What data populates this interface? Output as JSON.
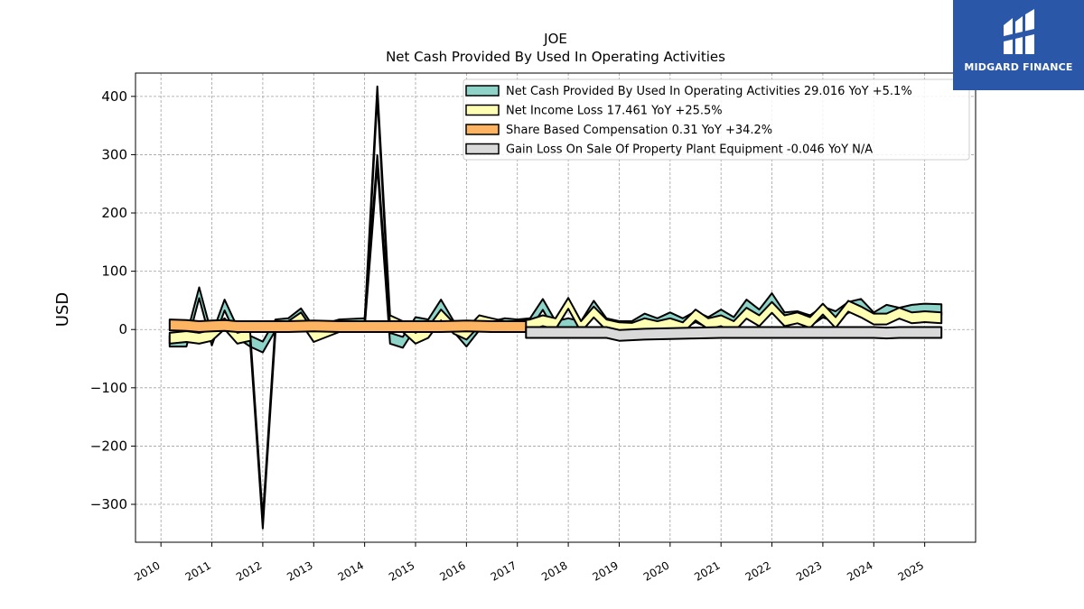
{
  "chart_data": {
    "type": "area",
    "title": "JOE",
    "subtitle": "Net Cash Provided By Used In Operating Activities",
    "ylabel": "USD",
    "xlabel": "",
    "ylim": [
      -365,
      440
    ],
    "xlim": [
      2009.5,
      2026.0
    ],
    "y_ticks": [
      400,
      300,
      200,
      100,
      0,
      -100,
      -200,
      -300
    ],
    "y_tick_labels": [
      "400",
      "300",
      "200",
      "100",
      "0",
      "−100",
      "−200",
      "−300"
    ],
    "x_ticks": [
      2010,
      2011,
      2012,
      2013,
      2014,
      2015,
      2016,
      2017,
      2018,
      2019,
      2020,
      2021,
      2022,
      2023,
      2024,
      2025
    ],
    "x_tick_labels": [
      "2010",
      "2011",
      "2012",
      "2013",
      "2014",
      "2015",
      "2016",
      "2017",
      "2018",
      "2019",
      "2020",
      "2021",
      "2022",
      "2023",
      "2024",
      "2025"
    ],
    "grid": true,
    "legend_position": "top-right",
    "series": [
      {
        "name": "Net Cash Provided By Used In Operating Activities",
        "legend_label": "Net Cash Provided By Used In Operating Activities  29.016 YoY +5.1%",
        "color": "#8dd3c7",
        "points": [
          [
            2010.17,
            -20
          ],
          [
            2010.5,
            -20
          ],
          [
            2010.75,
            63
          ],
          [
            2011.0,
            -18
          ],
          [
            2011.25,
            42
          ],
          [
            2011.5,
            -5
          ],
          [
            2011.75,
            -20
          ],
          [
            2012.0,
            -30
          ],
          [
            2012.25,
            8
          ],
          [
            2012.5,
            10
          ],
          [
            2012.75,
            27
          ],
          [
            2013.0,
            -5
          ],
          [
            2013.5,
            8
          ],
          [
            2014.0,
            10
          ],
          [
            2014.25,
            290
          ],
          [
            2014.5,
            -15
          ],
          [
            2014.75,
            -22
          ],
          [
            2015.0,
            12
          ],
          [
            2015.25,
            8
          ],
          [
            2015.5,
            42
          ],
          [
            2015.75,
            5
          ],
          [
            2016.0,
            -20
          ],
          [
            2016.25,
            8
          ],
          [
            2016.5,
            5
          ],
          [
            2016.75,
            10
          ],
          [
            2017.0,
            8
          ],
          [
            2017.25,
            10
          ],
          [
            2017.5,
            43
          ],
          [
            2017.75,
            5
          ],
          [
            2018.0,
            10
          ],
          [
            2018.25,
            5
          ],
          [
            2018.5,
            40
          ],
          [
            2018.75,
            10
          ],
          [
            2019.0,
            5
          ],
          [
            2019.25,
            5
          ],
          [
            2019.5,
            18
          ],
          [
            2019.75,
            10
          ],
          [
            2020.0,
            20
          ],
          [
            2020.25,
            10
          ],
          [
            2020.5,
            22
          ],
          [
            2020.75,
            12
          ],
          [
            2021.0,
            25
          ],
          [
            2021.25,
            12
          ],
          [
            2021.5,
            42
          ],
          [
            2021.75,
            25
          ],
          [
            2022.0,
            53
          ],
          [
            2022.25,
            20
          ],
          [
            2022.5,
            22
          ],
          [
            2022.75,
            15
          ],
          [
            2023.0,
            30
          ],
          [
            2023.25,
            22
          ],
          [
            2023.5,
            38
          ],
          [
            2023.75,
            43
          ],
          [
            2024.0,
            20
          ],
          [
            2024.25,
            33
          ],
          [
            2024.5,
            28
          ],
          [
            2024.75,
            33
          ],
          [
            2025.0,
            35
          ],
          [
            2025.33,
            34
          ]
        ]
      },
      {
        "name": "Net Income Loss",
        "legend_label": "Net Income Loss  17.461 YoY +25.5%",
        "color": "#ffffb3",
        "points": [
          [
            2010.17,
            -15
          ],
          [
            2010.5,
            -12
          ],
          [
            2010.75,
            -15
          ],
          [
            2011.0,
            -10
          ],
          [
            2011.25,
            10
          ],
          [
            2011.5,
            -15
          ],
          [
            2011.75,
            -10
          ],
          [
            2012.0,
            -332
          ],
          [
            2012.25,
            5
          ],
          [
            2012.5,
            5
          ],
          [
            2012.75,
            20
          ],
          [
            2013.0,
            -12
          ],
          [
            2013.5,
            5
          ],
          [
            2014.0,
            5
          ],
          [
            2014.25,
            408
          ],
          [
            2014.5,
            15
          ],
          [
            2014.75,
            5
          ],
          [
            2015.0,
            -15
          ],
          [
            2015.25,
            -5
          ],
          [
            2015.5,
            25
          ],
          [
            2015.75,
            2
          ],
          [
            2016.0,
            -8
          ],
          [
            2016.25,
            15
          ],
          [
            2016.5,
            10
          ],
          [
            2016.75,
            5
          ],
          [
            2017.0,
            5
          ],
          [
            2017.25,
            8
          ],
          [
            2017.5,
            15
          ],
          [
            2017.75,
            10
          ],
          [
            2018.0,
            45
          ],
          [
            2018.25,
            5
          ],
          [
            2018.5,
            30
          ],
          [
            2018.75,
            8
          ],
          [
            2019.0,
            3
          ],
          [
            2019.25,
            2
          ],
          [
            2019.5,
            10
          ],
          [
            2019.75,
            5
          ],
          [
            2020.0,
            10
          ],
          [
            2020.25,
            3
          ],
          [
            2020.5,
            25
          ],
          [
            2020.75,
            10
          ],
          [
            2021.0,
            15
          ],
          [
            2021.25,
            5
          ],
          [
            2021.5,
            28
          ],
          [
            2021.75,
            15
          ],
          [
            2022.0,
            38
          ],
          [
            2022.25,
            15
          ],
          [
            2022.5,
            20
          ],
          [
            2022.75,
            12
          ],
          [
            2023.0,
            35
          ],
          [
            2023.25,
            12
          ],
          [
            2023.5,
            40
          ],
          [
            2023.75,
            30
          ],
          [
            2024.0,
            18
          ],
          [
            2024.25,
            18
          ],
          [
            2024.5,
            28
          ],
          [
            2024.75,
            20
          ],
          [
            2025.0,
            22
          ],
          [
            2025.33,
            20
          ]
        ]
      },
      {
        "name": "Share Based Compensation",
        "legend_label": "Share Based Compensation  0.31 YoY +34.2%",
        "color": "#fdb462",
        "points": [
          [
            2010.17,
            8
          ],
          [
            2010.5,
            7
          ],
          [
            2010.75,
            5
          ],
          [
            2011.0,
            6
          ],
          [
            2011.25,
            7
          ],
          [
            2011.5,
            5
          ],
          [
            2011.75,
            5
          ],
          [
            2012.0,
            5
          ],
          [
            2012.5,
            5
          ],
          [
            2013.0,
            6
          ],
          [
            2013.5,
            5
          ],
          [
            2014.0,
            5
          ],
          [
            2014.5,
            5
          ],
          [
            2015.0,
            5
          ],
          [
            2015.5,
            5
          ],
          [
            2016.0,
            6
          ],
          [
            2016.5,
            5
          ],
          [
            2017.0,
            5
          ],
          [
            2017.17,
            5
          ]
        ]
      },
      {
        "name": "Gain Loss On Sale Of Property Plant Equipment",
        "legend_label": "Gain Loss On Sale Of Property Plant Equipment  -0.046 YoY N/A",
        "color": "#d9d9d9",
        "points": [
          [
            2017.17,
            -5
          ],
          [
            2017.5,
            -5
          ],
          [
            2018.0,
            -5
          ],
          [
            2018.5,
            -5
          ],
          [
            2018.75,
            -5
          ],
          [
            2019.0,
            -10
          ],
          [
            2019.5,
            -8
          ],
          [
            2020.0,
            -7
          ],
          [
            2020.5,
            -6
          ],
          [
            2021.0,
            -5
          ],
          [
            2021.5,
            -5
          ],
          [
            2022.0,
            -5
          ],
          [
            2022.5,
            -5
          ],
          [
            2023.0,
            -5
          ],
          [
            2023.5,
            -5
          ],
          [
            2024.0,
            -5
          ],
          [
            2024.25,
            -6
          ],
          [
            2024.5,
            -5
          ],
          [
            2025.0,
            -5
          ],
          [
            2025.33,
            -5
          ]
        ]
      }
    ]
  },
  "logo": {
    "text": "MIDGARD FINANCE",
    "bg": "#2a57a8"
  }
}
